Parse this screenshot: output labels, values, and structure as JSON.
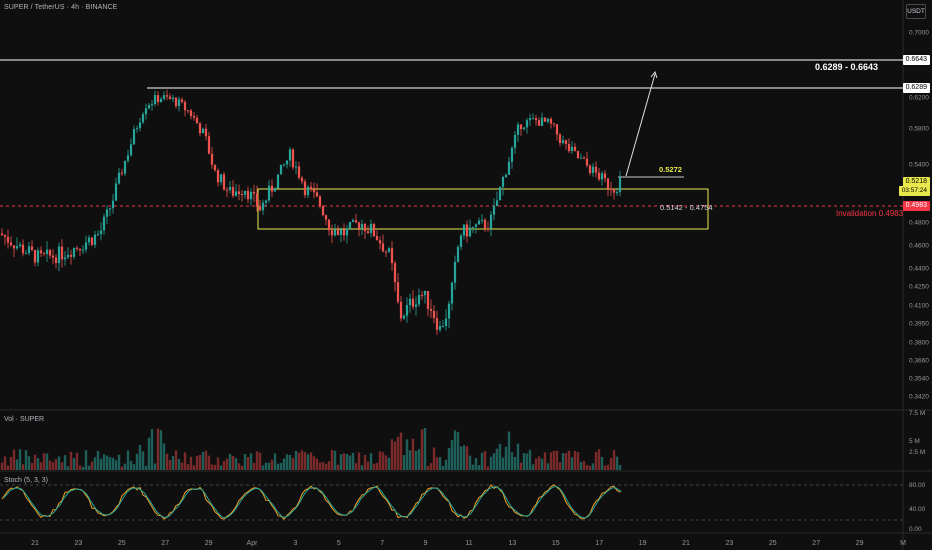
{
  "header": {
    "symbol_line": "SUPER / TetherUS · 4h · BINANCE",
    "currency_button": "USDT"
  },
  "indicators": {
    "volume_label": "Vol · SUPER",
    "stoch_label": "Stoch (5, 3, 3)"
  },
  "price_axis": {
    "ticks": [
      "0.7000",
      "0.6289",
      "0.6200",
      "0.5800",
      "0.5400",
      "0.5218",
      "0.4983",
      "0.4800",
      "0.4600",
      "0.4400",
      "0.4250",
      "0.4100",
      "0.3950",
      "0.3800",
      "0.3660",
      "0.3540",
      "0.3420"
    ],
    "tick_values": [
      0.7,
      0.6289,
      0.62,
      0.58,
      0.54,
      0.5218,
      0.4983,
      0.48,
      0.46,
      0.44,
      0.425,
      0.41,
      0.395,
      0.38,
      0.366,
      0.354,
      0.342
    ],
    "level_0664": "0.6643",
    "level_0628": "0.6289",
    "current_price": "0.5218",
    "countdown": "03:57:24",
    "invalidation_price": "0.4983"
  },
  "volume_axis": {
    "ticks": [
      "7.5 M",
      "5 M",
      "2.5 M"
    ]
  },
  "stoch_axis": {
    "ticks": [
      "80.00",
      "40.00",
      "0.00"
    ]
  },
  "time_axis": {
    "ticks": [
      "21",
      "23",
      "25",
      "27",
      "29",
      "Apr",
      "3",
      "5",
      "7",
      "9",
      "11",
      "13",
      "15",
      "17",
      "19",
      "21",
      "23",
      "25",
      "27",
      "29",
      "M"
    ]
  },
  "annotations": {
    "target_range": "0.6289 - 0.6643",
    "level_label": "0.5272",
    "zone_label": "0.5142 - 0.4754",
    "invalidation_label": "Invalidation 0.4983"
  },
  "colors": {
    "background": "#0f0f0f",
    "bull": "#26a69a",
    "bear": "#ef5350",
    "zone": "#e8e84c",
    "invalidation": "#f23645",
    "stoch_k": "#f0a020",
    "stoch_d": "#26a69a",
    "level_line": "#ffffff"
  },
  "chart_data": {
    "type": "candlestick",
    "timeframe": "4h",
    "price_range": [
      0.342,
      0.7
    ],
    "candles": []
  }
}
